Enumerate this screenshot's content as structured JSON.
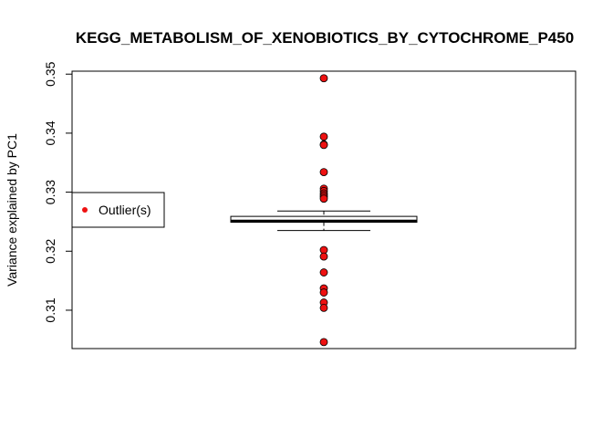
{
  "chart_data": {
    "type": "boxplot",
    "title": "KEGG_METABOLISM_OF_XENOBIOTICS_BY_CYTOCHROME_P450",
    "xlabel": "",
    "ylabel": "Variance explained by PC1",
    "ylim": [
      0.3035,
      0.3505
    ],
    "y_ticks": [
      0.31,
      0.32,
      0.33,
      0.34,
      0.35
    ],
    "y_tick_labels": [
      "0.31",
      "0.32",
      "0.33",
      "0.34",
      "0.35"
    ],
    "grid": false,
    "box": {
      "whisker_low": 0.3235,
      "q1": 0.3249,
      "median": 0.3251,
      "q3": 0.3259,
      "whisker_high": 0.3268
    },
    "outliers": [
      0.3493,
      0.3394,
      0.3381,
      0.338,
      0.3334,
      0.3306,
      0.3302,
      0.3298,
      0.3295,
      0.3292,
      0.3289,
      0.3202,
      0.3191,
      0.3164,
      0.3137,
      0.313,
      0.3113,
      0.3104,
      0.3046
    ],
    "legend": {
      "position": "left",
      "entries": [
        {
          "label": "Outlier(s)",
          "color": "#ee1111"
        }
      ]
    },
    "colors": {
      "outlier_fill": "#ee1111",
      "outlier_stroke": "#000000",
      "box_fill": "#ffffff",
      "median": "#000000"
    }
  }
}
